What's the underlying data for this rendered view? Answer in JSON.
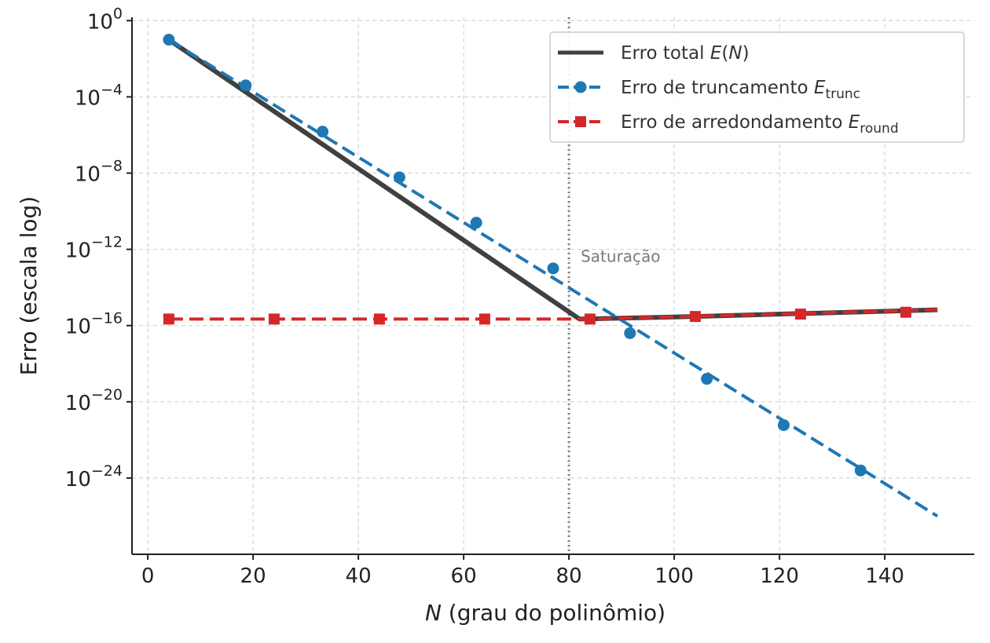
{
  "chart_data": {
    "type": "line",
    "xlabel_italic": "N",
    "xlabel_rest": " (grau do polinômio)",
    "ylabel": "Erro (escala log)",
    "xlim": [
      -3,
      157
    ],
    "ylim": [
      1e-28,
      1.5
    ],
    "yscale": "log",
    "xticks": [
      0,
      20,
      40,
      60,
      80,
      100,
      120,
      140
    ],
    "yticks": [
      {
        "value": 1,
        "base": "10",
        "exp": "0"
      },
      {
        "value": 0.0001,
        "base": "10",
        "exp": "−4"
      },
      {
        "value": 1e-08,
        "base": "10",
        "exp": "−8"
      },
      {
        "value": 1e-12,
        "base": "10",
        "exp": "−12"
      },
      {
        "value": 1e-16,
        "base": "10",
        "exp": "−16"
      },
      {
        "value": 1e-20,
        "base": "10",
        "exp": "−20"
      },
      {
        "value": 1e-24,
        "base": "10",
        "exp": "−24"
      }
    ],
    "grid": true,
    "legend_position": "top-right",
    "vline": {
      "x": 80,
      "label": "Saturação"
    },
    "series": [
      {
        "name_main": "Erro total ",
        "name_italic": "E",
        "name_after": "(N)",
        "name_sub": "",
        "color": "#404040",
        "style": "solid",
        "marker": "none",
        "x": [
          4,
          82,
          100,
          150
        ],
        "y": [
          0.1,
          2.2e-16,
          2.8e-16,
          6.7e-16
        ]
      },
      {
        "name_main": "Erro de truncamento ",
        "name_italic": "E",
        "name_after": "",
        "name_sub": "trunc",
        "color": "#1f77b4",
        "style": "dashed",
        "marker": "circle",
        "x": [
          4,
          150
        ],
        "y": [
          0.1,
          1e-26
        ],
        "marker_x": [
          4,
          18.6,
          33.2,
          47.8,
          62.4,
          77.0,
          91.6,
          106.2,
          120.8,
          135.4
        ],
        "marker_y": [
          0.1,
          0.0004,
          1.5e-06,
          6e-09,
          2.5e-11,
          1e-13,
          4e-17,
          1.6e-19,
          6e-22,
          2.5e-24
        ]
      },
      {
        "name_main": "Erro de arredondamento ",
        "name_italic": "E",
        "name_after": "",
        "name_sub": "round",
        "color": "#d62728",
        "style": "dashed",
        "marker": "square",
        "x": [
          4,
          84,
          150
        ],
        "y": [
          2.2e-16,
          2.2e-16,
          6.7e-16
        ],
        "marker_x": [
          4,
          24,
          44,
          64,
          84,
          104,
          124,
          144
        ],
        "marker_y": [
          2.2e-16,
          2.2e-16,
          2.2e-16,
          2.2e-16,
          2.2e-16,
          3e-16,
          4e-16,
          5e-16
        ]
      }
    ]
  }
}
